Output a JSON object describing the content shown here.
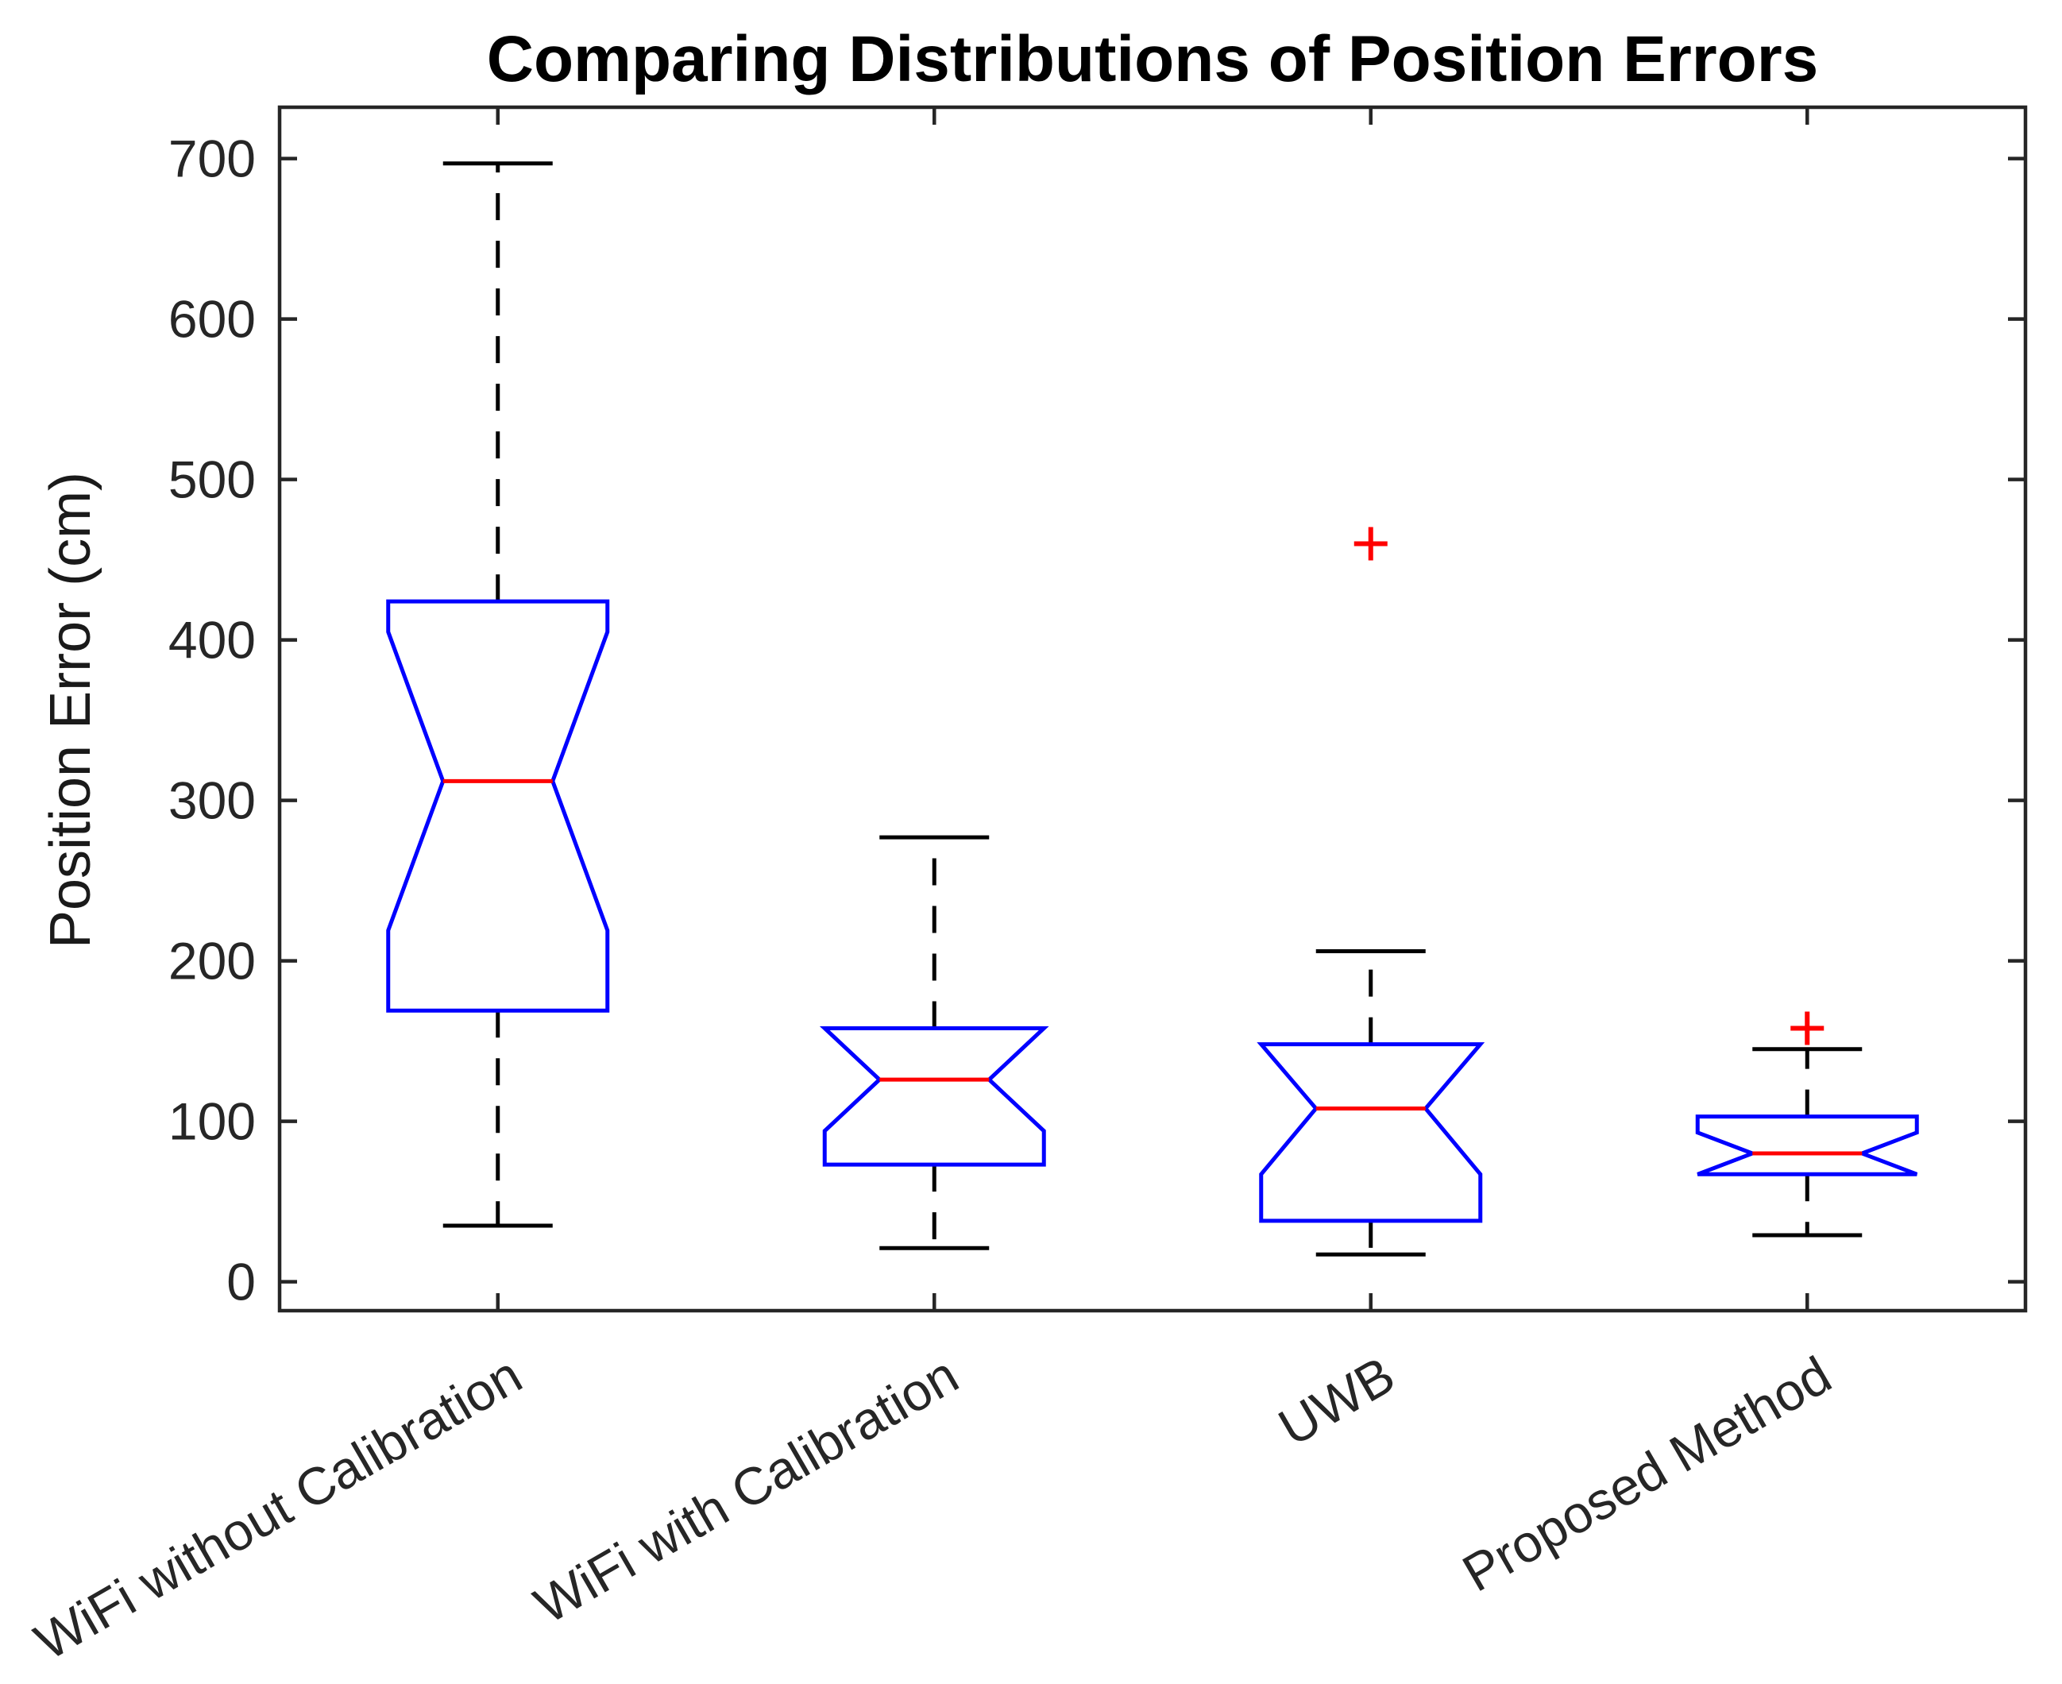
{
  "chart_data": {
    "type": "boxplot",
    "title": "Comparing Distributions of Position Errors",
    "ylabel": "Position Error (cm)",
    "xlabel": "",
    "categories": [
      "WiFi without Calibration",
      "WiFi with Calibration",
      "UWB",
      "Proposed Method"
    ],
    "yticks": [
      0,
      100,
      200,
      300,
      400,
      500,
      600,
      700
    ],
    "ylim": [
      -18,
      732
    ],
    "grid": false,
    "notched": true,
    "x_label_rotation_deg": -30,
    "colors": {
      "box": "#0000ff",
      "median": "#ff0000",
      "whisker": "#000000",
      "outlier": "#ff0000",
      "axis": "#262626",
      "tick_text": "#262626",
      "title_text": "#000000"
    },
    "series": [
      {
        "name": "WiFi without Calibration",
        "whisker_low": 35,
        "q1": 169,
        "median": 312,
        "q3": 424,
        "whisker_high": 697,
        "notch_low": 219,
        "notch_high": 405,
        "outliers": []
      },
      {
        "name": "WiFi with Calibration",
        "whisker_low": 21,
        "q1": 73,
        "median": 126,
        "q3": 158,
        "whisker_high": 277,
        "notch_low": 94,
        "notch_high": 158,
        "outliers": []
      },
      {
        "name": "UWB",
        "whisker_low": 17,
        "q1": 38,
        "median": 108,
        "q3": 148,
        "whisker_high": 206,
        "notch_low": 67,
        "notch_high": 148,
        "outliers": [
          460
        ]
      },
      {
        "name": "Proposed Method",
        "whisker_low": 29,
        "q1": 67,
        "median": 80,
        "q3": 103,
        "whisker_high": 145,
        "notch_low": 67,
        "notch_high": 93,
        "outliers": [
          158
        ]
      }
    ]
  }
}
